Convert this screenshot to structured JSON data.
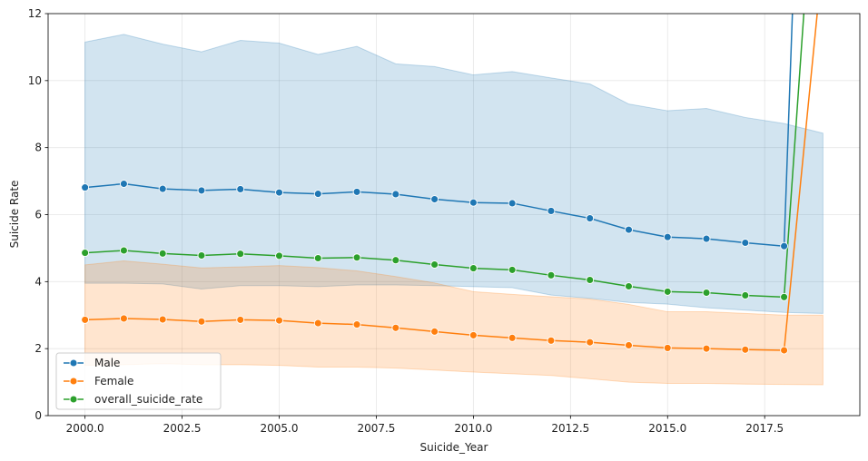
{
  "chart_data": {
    "type": "line",
    "title": "",
    "xlabel": "Suicide_Year",
    "ylabel": "Suicide Rate",
    "xlim": [
      1999.05,
      2019.95
    ],
    "ylim": [
      0,
      12
    ],
    "xticks": [
      2000.0,
      2002.5,
      2005.0,
      2007.5,
      2010.0,
      2012.5,
      2015.0,
      2017.5
    ],
    "xtick_labels": [
      "2000.0",
      "2002.5",
      "2005.0",
      "2007.5",
      "2010.0",
      "2012.5",
      "2015.0",
      "2017.5"
    ],
    "yticks": [
      0,
      2,
      4,
      6,
      8,
      10,
      12
    ],
    "ytick_labels": [
      "0",
      "2",
      "4",
      "6",
      "8",
      "10",
      "12"
    ],
    "grid": true,
    "legend_position": "lower-left",
    "x": [
      2000,
      2001,
      2002,
      2003,
      2004,
      2005,
      2006,
      2007,
      2008,
      2009,
      2010,
      2011,
      2012,
      2013,
      2014,
      2015,
      2016,
      2017,
      2018
    ],
    "series": [
      {
        "name": "Male",
        "color": "#1f77b4",
        "values": [
          6.81,
          6.92,
          6.77,
          6.72,
          6.76,
          6.66,
          6.62,
          6.68,
          6.61,
          6.46,
          6.36,
          6.34,
          6.11,
          5.89,
          5.55,
          5.33,
          5.28,
          5.16,
          5.06
        ],
        "extension": {
          "x": [
            2018,
            2018.22
          ],
          "y": [
            5.06,
            12.2
          ]
        },
        "ci_x": [
          2000,
          2001,
          2002,
          2003,
          2004,
          2005,
          2006,
          2007,
          2008,
          2009,
          2010,
          2011,
          2012,
          2013,
          2014,
          2015,
          2016,
          2017,
          2018,
          2019
        ],
        "ci_upper": [
          11.15,
          11.38,
          11.09,
          10.86,
          11.2,
          11.12,
          10.78,
          11.02,
          10.5,
          10.42,
          10.17,
          10.27,
          10.08,
          9.9,
          9.3,
          9.1,
          9.17,
          8.9,
          8.72,
          8.43
        ],
        "ci_lower": [
          3.95,
          3.95,
          3.93,
          3.78,
          3.88,
          3.88,
          3.85,
          3.9,
          3.9,
          3.88,
          3.85,
          3.82,
          3.6,
          3.5,
          3.38,
          3.33,
          3.22,
          3.15,
          3.08,
          3.05
        ],
        "ci_color": "#1f77b4"
      },
      {
        "name": "Female",
        "color": "#ff7f0e",
        "values": [
          2.86,
          2.9,
          2.87,
          2.81,
          2.86,
          2.84,
          2.76,
          2.72,
          2.62,
          2.51,
          2.4,
          2.32,
          2.24,
          2.19,
          2.1,
          2.02,
          2.0,
          1.97,
          1.95
        ],
        "extension": {
          "x": [
            2018,
            2018.87
          ],
          "y": [
            1.95,
            12.2
          ]
        },
        "ci_x": [
          2000,
          2001,
          2002,
          2003,
          2004,
          2005,
          2006,
          2007,
          2008,
          2009,
          2010,
          2011,
          2012,
          2013,
          2014,
          2015,
          2016,
          2017,
          2018,
          2019
        ],
        "ci_upper": [
          4.5,
          4.62,
          4.52,
          4.41,
          4.44,
          4.48,
          4.42,
          4.32,
          4.15,
          3.96,
          3.7,
          3.62,
          3.55,
          3.48,
          3.32,
          3.1,
          3.1,
          3.05,
          3.0,
          3.0
        ],
        "ci_lower": [
          1.5,
          1.52,
          1.55,
          1.52,
          1.52,
          1.5,
          1.45,
          1.45,
          1.42,
          1.36,
          1.3,
          1.25,
          1.2,
          1.1,
          1.0,
          0.96,
          0.96,
          0.94,
          0.93,
          0.92
        ],
        "ci_color": "#ff7f0e"
      },
      {
        "name": "overall_suicide_rate",
        "color": "#2ca02c",
        "values": [
          4.86,
          4.93,
          4.84,
          4.78,
          4.83,
          4.77,
          4.7,
          4.72,
          4.64,
          4.51,
          4.4,
          4.35,
          4.19,
          4.05,
          3.86,
          3.7,
          3.67,
          3.59,
          3.54
        ],
        "extension": {
          "x": [
            2018,
            2018.52
          ],
          "y": [
            3.54,
            12.2
          ]
        }
      }
    ]
  }
}
